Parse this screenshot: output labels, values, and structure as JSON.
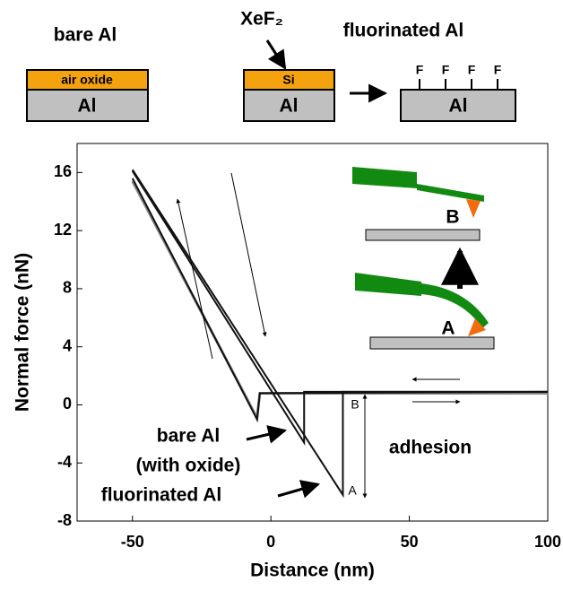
{
  "chart_data": {
    "type": "line",
    "x_label": "Distance (nm)",
    "y_label": "Normal force (nN)",
    "xlim": [
      -70,
      100
    ],
    "ylim": [
      -8,
      18
    ],
    "xticks": [
      -50,
      0,
      50,
      100
    ],
    "yticks": [
      -8,
      -4,
      0,
      4,
      8,
      12,
      16
    ],
    "series": [
      {
        "color": "#888888",
        "x": [
          -50,
          -5,
          -4,
          100
        ],
        "y": [
          15.4,
          -0.9,
          0.8,
          0.8
        ]
      },
      {
        "color": "#111111",
        "x": [
          -50,
          -5,
          -4,
          100
        ],
        "y": [
          15.6,
          -1.0,
          0.8,
          0.9
        ]
      },
      {
        "color": "#111111",
        "x": [
          -50,
          12,
          12,
          100
        ],
        "y": [
          16.1,
          -2.6,
          0.9,
          0.9
        ]
      },
      {
        "color": "#111111",
        "x": [
          -50,
          26,
          26,
          100
        ],
        "y": [
          16.2,
          -6.2,
          0.9,
          0.9
        ]
      }
    ],
    "annotations": [
      "bare Al",
      "(with oxide)",
      "fluorinated Al",
      "adhesion",
      "B",
      "A"
    ],
    "inset_labels": [
      "B",
      "A"
    ]
  },
  "schematic": {
    "bare_title": "bare Al",
    "oxide_layer": "air oxide",
    "bare_substrate": "Al",
    "reagent": "XeF₂",
    "si_layer": "Si",
    "si_substrate": "Al",
    "fluorinated_title": "fluorinated Al",
    "fluorine_atoms": [
      "F",
      "F",
      "F",
      "F"
    ],
    "fluorinated_substrate": "Al"
  }
}
